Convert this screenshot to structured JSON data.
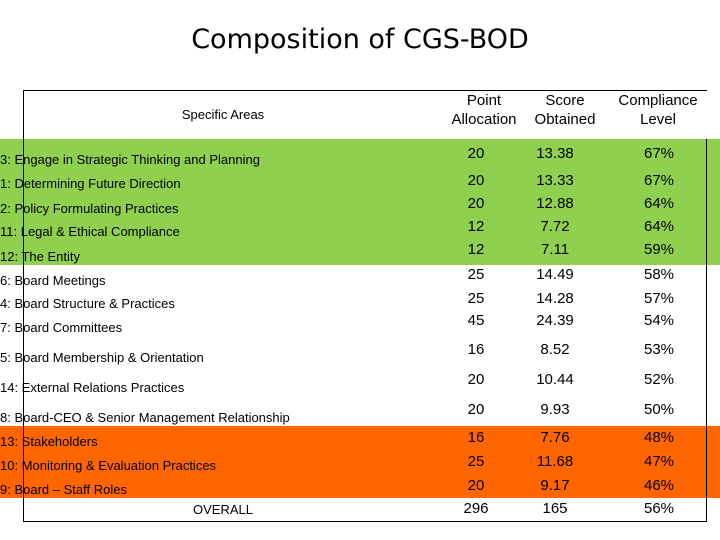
{
  "title": "Composition of CGS-BOD",
  "colors": {
    "green": "#8fd14f",
    "orange": "#ff6600",
    "white": "#ffffff"
  },
  "headers": {
    "specific_areas": "Specific Areas",
    "point_allocation": [
      "Point",
      "Allocation"
    ],
    "score_obtained": [
      "Score",
      "Obtained"
    ],
    "compliance_level": [
      "Compliance",
      "Level"
    ]
  },
  "rows": [
    {
      "area": "3:  Engage in Strategic Thinking and Planning",
      "points": "20",
      "score": "13.38",
      "compliance": "67%"
    },
    {
      "area": "1:  Determining Future Direction",
      "points": "20",
      "score": "13.33",
      "compliance": "67%"
    },
    {
      "area": "2:  Policy Formulating Practices",
      "points": "20",
      "score": "12.88",
      "compliance": "64%"
    },
    {
      "area": "11: Legal & Ethical Compliance",
      "points": "12",
      "score": "7.72",
      "compliance": "64%"
    },
    {
      "area": "12: The Entity",
      "points": "12",
      "score": "7.11",
      "compliance": "59%"
    },
    {
      "area": "6:  Board Meetings",
      "points": "25",
      "score": "14.49",
      "compliance": "58%"
    },
    {
      "area": "4:  Board Structure & Practices",
      "points": "25",
      "score": "14.28",
      "compliance": "57%"
    },
    {
      "area": "7:  Board Committees",
      "points": "45",
      "score": "24.39",
      "compliance": "54%"
    },
    {
      "area": "5:  Board Membership & Orientation",
      "points": "16",
      "score": "8.52",
      "compliance": "53%"
    },
    {
      "area": "14: External Relations Practices",
      "points": "20",
      "score": "10.44",
      "compliance": "52%"
    },
    {
      "area": "8:  Board-CEO & Senior Management Relationship",
      "points": "20",
      "score": "9.93",
      "compliance": "50%"
    },
    {
      "area": "13: Stakeholders",
      "points": "16",
      "score": "7.76",
      "compliance": "48%"
    },
    {
      "area": "10: Monitoring & Evaluation Practices",
      "points": "25",
      "score": "11.68",
      "compliance": "47%"
    },
    {
      "area": "9:  Board – Staff Roles",
      "points": "20",
      "score": "9.17",
      "compliance": "46%"
    }
  ],
  "overall": {
    "label": "OVERALL",
    "points": "296",
    "score": "165",
    "compliance": "56%"
  }
}
